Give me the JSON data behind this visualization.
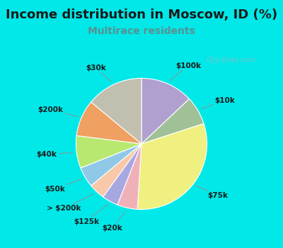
{
  "title": "Income distribution in Moscow, ID (%)",
  "subtitle": "Multirace residents",
  "watermark": "City-Data.com",
  "slices": [
    {
      "label": "$100k",
      "value": 13,
      "color": "#b0a0d0"
    },
    {
      "label": "$10k",
      "value": 7,
      "color": "#a0c098"
    },
    {
      "label": "$75k",
      "value": 31,
      "color": "#f0f080"
    },
    {
      "label": "$20k",
      "value": 5,
      "color": "#f0b0b8"
    },
    {
      "label": "$125k",
      "value": 4,
      "color": "#a8a8e0"
    },
    {
      "label": "> $200k",
      "value": 4,
      "color": "#f8c8a8"
    },
    {
      "label": "$50k",
      "value": 5,
      "color": "#90c8e8"
    },
    {
      "label": "$40k",
      "value": 8,
      "color": "#b8e870"
    },
    {
      "label": "$200k",
      "value": 9,
      "color": "#f0a060"
    },
    {
      "label": "$30k",
      "value": 14,
      "color": "#c0bfb0"
    }
  ],
  "background_color": "#00e8e8",
  "chart_bg_color": "#d0ede0",
  "title_fontsize": 13,
  "subtitle_fontsize": 10,
  "subtitle_color": "#5a9090",
  "label_fontsize": 7.5,
  "watermark_color": "#a0b8c0",
  "figsize": [
    4.0,
    3.5
  ],
  "dpi": 100
}
